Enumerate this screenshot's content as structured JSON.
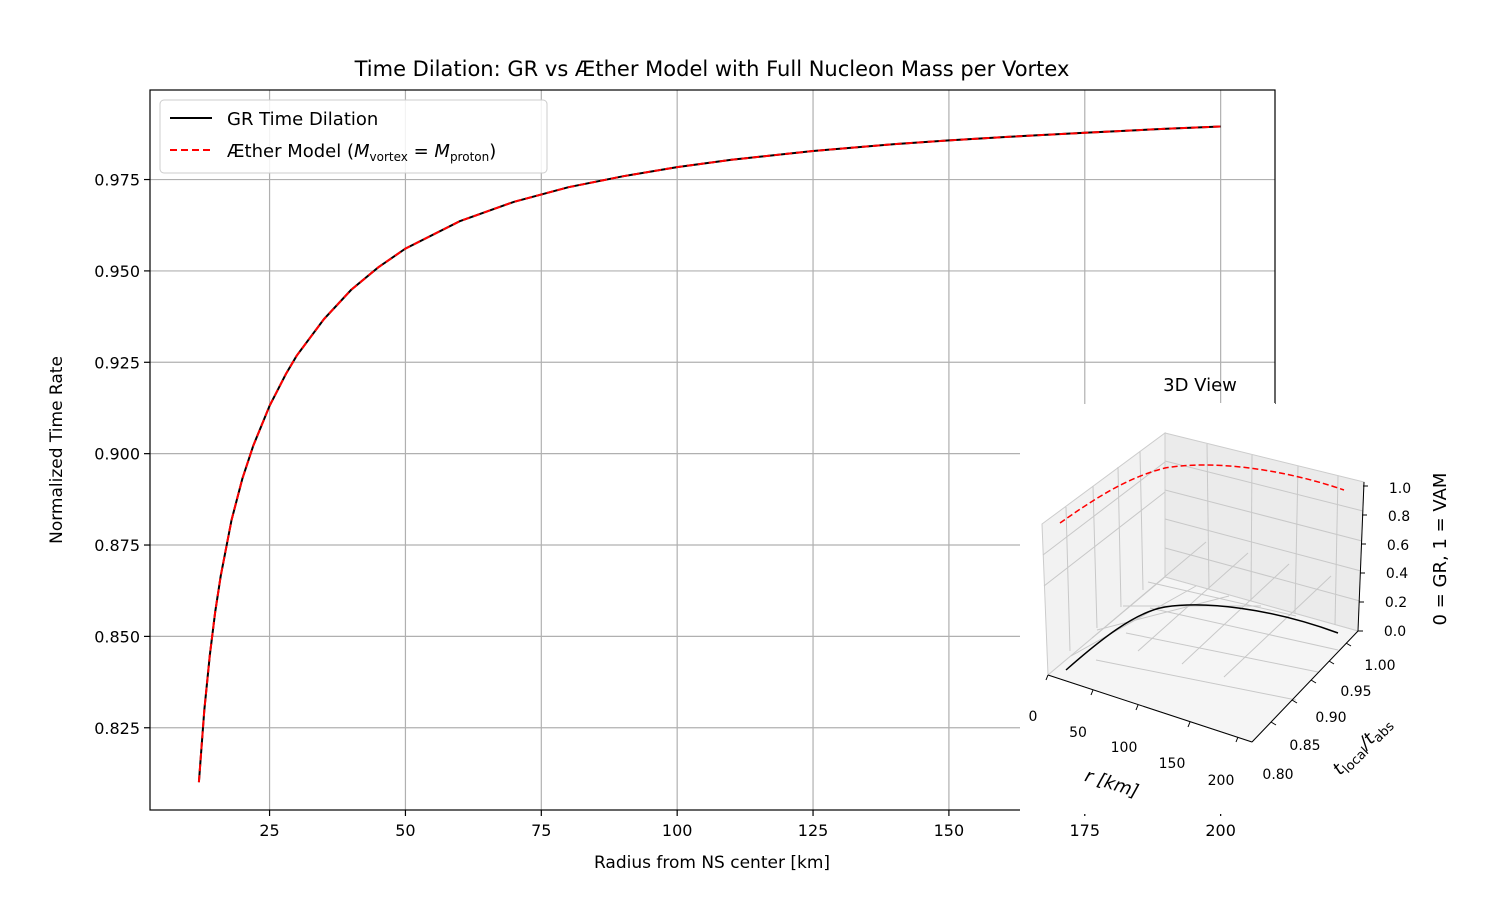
{
  "chart_data": [
    {
      "type": "line",
      "title": "Time Dilation: GR vs Æther Model with Full Nucleon Mass per Vortex",
      "xlabel": "Radius from NS center [km]",
      "ylabel": "Normalized Time Rate",
      "xlim": [
        3,
        210
      ],
      "ylim": [
        0.8025,
        0.9995
      ],
      "xticks": [
        25,
        50,
        75,
        100,
        125,
        150,
        175,
        200
      ],
      "xtick_labels": [
        "25",
        "50",
        "75",
        "100",
        "125",
        "150",
        "175",
        "200"
      ],
      "yticks": [
        0.825,
        0.85,
        0.875,
        0.9,
        0.925,
        0.95,
        0.975
      ],
      "ytick_labels": [
        "0.825",
        "0.850",
        "0.875",
        "0.900",
        "0.925",
        "0.950",
        "0.975"
      ],
      "grid": true,
      "legend_position": "top-left",
      "legend": {
        "gr": "GR Time Dilation",
        "aether_prefix": "Æther Model (",
        "aether_m1": "M",
        "aether_sub1": "vortex",
        "aether_eq": " = ",
        "aether_m2": "M",
        "aether_sub2": "proton",
        "aether_suffix": ")"
      },
      "x": [
        12,
        13,
        14,
        15,
        16,
        18,
        20,
        22,
        25,
        28,
        30,
        35,
        40,
        45,
        50,
        60,
        70,
        80,
        90,
        100,
        110,
        125,
        140,
        150,
        160,
        175,
        190,
        200
      ],
      "series": [
        {
          "name": "GR Time Dilation",
          "color": "#000000",
          "style": "solid",
          "values": [
            0.8101,
            0.8298,
            0.8448,
            0.8567,
            0.8665,
            0.8818,
            0.8932,
            0.9022,
            0.9131,
            0.9218,
            0.9268,
            0.9368,
            0.9448,
            0.951,
            0.9561,
            0.9636,
            0.9689,
            0.9729,
            0.9759,
            0.9784,
            0.9804,
            0.9828,
            0.9847,
            0.9857,
            0.9866,
            0.9878,
            0.9889,
            0.9895
          ]
        },
        {
          "name": "Æther Model (M_vortex = M_proton)",
          "color": "#ff0000",
          "style": "dashed",
          "values": [
            0.8101,
            0.8298,
            0.8448,
            0.8567,
            0.8665,
            0.8818,
            0.8932,
            0.9022,
            0.9131,
            0.9218,
            0.9268,
            0.9368,
            0.9448,
            0.951,
            0.9561,
            0.9636,
            0.9689,
            0.9729,
            0.9759,
            0.9784,
            0.9804,
            0.9828,
            0.9847,
            0.9857,
            0.9866,
            0.9878,
            0.9889,
            0.9895
          ]
        }
      ]
    },
    {
      "type": "line",
      "title": "3D View",
      "xlabel": "r [km]",
      "ylabel_main": "t",
      "ylabel_sub1": "local",
      "ylabel_slash": "/t",
      "ylabel_sub2": "abs",
      "zlabel": "0 = GR, 1 = VAM",
      "x_ticks": [
        "0",
        "50",
        "100",
        "150",
        "200"
      ],
      "y_ticks": [
        "0.80",
        "0.85",
        "0.90",
        "0.95",
        "1.00"
      ],
      "z_ticks": [
        "0.0",
        "0.2",
        "0.4",
        "0.6",
        "0.8",
        "1.0"
      ],
      "xlim": [
        0,
        210
      ],
      "ylim": [
        0.8,
        1.0
      ],
      "zlim": [
        0,
        1
      ],
      "series": [
        {
          "name": "GR",
          "color": "#000000",
          "style": "solid",
          "z": 0
        },
        {
          "name": "Æther",
          "color": "#ff0000",
          "style": "dashed",
          "z": 1
        }
      ]
    }
  ]
}
